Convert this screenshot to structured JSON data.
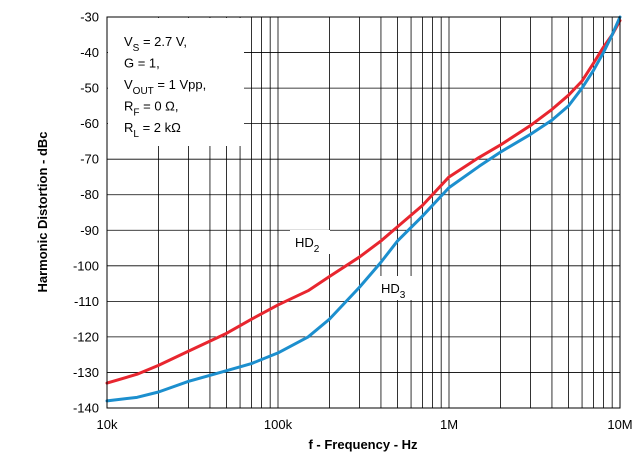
{
  "chart_data": {
    "type": "line",
    "xlabel": "f - Frequency - Hz",
    "ylabel": "Harmonic Distortion - dBc",
    "xscale": "log",
    "xlim": [
      10000,
      10000000
    ],
    "ylim": [
      -140,
      -30
    ],
    "x_ticks": [
      {
        "value": 10000,
        "label": "10k"
      },
      {
        "value": 100000,
        "label": "100k"
      },
      {
        "value": 1000000,
        "label": "1M"
      },
      {
        "value": 10000000,
        "label": "10M"
      }
    ],
    "y_ticks": [
      {
        "value": -30,
        "label": "-30"
      },
      {
        "value": -40,
        "label": "-40"
      },
      {
        "value": -50,
        "label": "-50"
      },
      {
        "value": -60,
        "label": "-60"
      },
      {
        "value": -70,
        "label": "-70"
      },
      {
        "value": -80,
        "label": "-80"
      },
      {
        "value": -90,
        "label": "-90"
      },
      {
        "value": -100,
        "label": "-100"
      },
      {
        "value": -110,
        "label": "-110"
      },
      {
        "value": -120,
        "label": "-120"
      },
      {
        "value": -130,
        "label": "-130"
      },
      {
        "value": -140,
        "label": "-140"
      }
    ],
    "grid": true,
    "conditions": [
      {
        "main": "V",
        "sub": "S",
        "rest": " = 2.7 V,"
      },
      {
        "main": "G = 1,",
        "sub": "",
        "rest": ""
      },
      {
        "main": "V",
        "sub": "OUT",
        "rest": " = 1 Vpp,"
      },
      {
        "main": "R",
        "sub": "F",
        "rest": " = 0 Ω,"
      },
      {
        "main": "R",
        "sub": "L",
        "rest": " = 2 kΩ"
      }
    ],
    "series": [
      {
        "name": "HD2",
        "label_main": "HD",
        "label_sub": "2",
        "color": "#e8262f",
        "points": [
          [
            10000,
            -133
          ],
          [
            15000,
            -130.5
          ],
          [
            20000,
            -128
          ],
          [
            30000,
            -124
          ],
          [
            50000,
            -119
          ],
          [
            70000,
            -115
          ],
          [
            100000,
            -111
          ],
          [
            150000,
            -107
          ],
          [
            200000,
            -103
          ],
          [
            300000,
            -97.5
          ],
          [
            400000,
            -93
          ],
          [
            500000,
            -89
          ],
          [
            700000,
            -83
          ],
          [
            1000000,
            -75
          ],
          [
            1500000,
            -69.5
          ],
          [
            2000000,
            -66
          ],
          [
            3000000,
            -60.5
          ],
          [
            4000000,
            -56
          ],
          [
            5000000,
            -52
          ],
          [
            6000000,
            -48
          ],
          [
            7000000,
            -43
          ],
          [
            8000000,
            -38.5
          ],
          [
            9000000,
            -35
          ],
          [
            10000000,
            -31
          ]
        ]
      },
      {
        "name": "HD3",
        "label_main": "HD",
        "label_sub": "3",
        "color": "#1c8fce",
        "points": [
          [
            10000,
            -138
          ],
          [
            15000,
            -137
          ],
          [
            20000,
            -135.5
          ],
          [
            30000,
            -132.5
          ],
          [
            50000,
            -129.5
          ],
          [
            70000,
            -127.5
          ],
          [
            100000,
            -124.5
          ],
          [
            150000,
            -120
          ],
          [
            200000,
            -115
          ],
          [
            300000,
            -106
          ],
          [
            400000,
            -99
          ],
          [
            500000,
            -93
          ],
          [
            700000,
            -86
          ],
          [
            1000000,
            -78
          ],
          [
            1500000,
            -72
          ],
          [
            2000000,
            -68
          ],
          [
            3000000,
            -63
          ],
          [
            4000000,
            -59
          ],
          [
            5000000,
            -55
          ],
          [
            6000000,
            -50
          ],
          [
            7000000,
            -45
          ],
          [
            8000000,
            -40
          ],
          [
            9000000,
            -35
          ],
          [
            10000000,
            -30
          ]
        ]
      }
    ]
  }
}
